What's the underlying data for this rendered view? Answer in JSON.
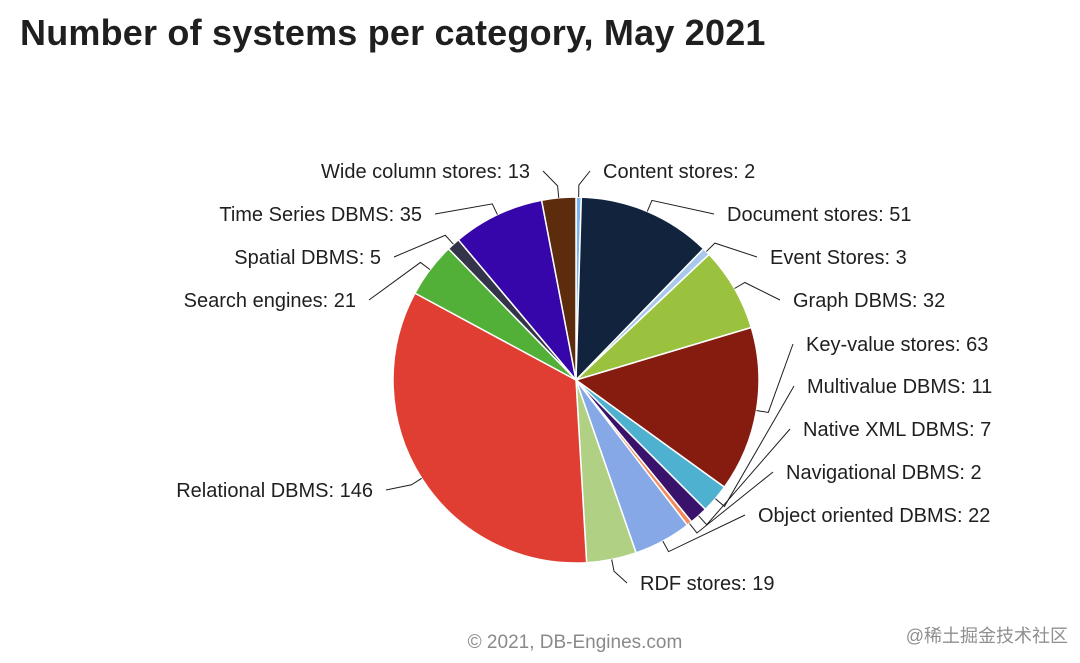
{
  "chart_data": {
    "type": "pie",
    "title": "Number of systems per category, May 2021",
    "slices": [
      {
        "label": "Content stores",
        "value": 2,
        "color": "#7cb5ec"
      },
      {
        "label": "Document stores",
        "value": 51,
        "color": "#12233d"
      },
      {
        "label": "Event Stores",
        "value": 3,
        "color": "#a8c8ec"
      },
      {
        "label": "Graph DBMS",
        "value": 32,
        "color": "#9bc23e"
      },
      {
        "label": "Key-value stores",
        "value": 63,
        "color": "#861b0f"
      },
      {
        "label": "Multivalue DBMS",
        "value": 11,
        "color": "#4eb1cf"
      },
      {
        "label": "Native XML DBMS",
        "value": 7,
        "color": "#39136b"
      },
      {
        "label": "Navigational DBMS",
        "value": 2,
        "color": "#f28a5a"
      },
      {
        "label": "Object oriented DBMS",
        "value": 22,
        "color": "#86a8e6"
      },
      {
        "label": "RDF stores",
        "value": 19,
        "color": "#b0d084"
      },
      {
        "label": "Relational DBMS",
        "value": 146,
        "color": "#e03e32"
      },
      {
        "label": "Search engines",
        "value": 21,
        "color": "#52b038"
      },
      {
        "label": "Spatial DBMS",
        "value": 5,
        "color": "#33334a"
      },
      {
        "label": "Time Series DBMS",
        "value": 35,
        "color": "#3606ab"
      },
      {
        "label": "Wide column stores",
        "value": 13,
        "color": "#5c2c0c"
      }
    ]
  },
  "footer": "© 2021, DB-Engines.com",
  "watermark": "@稀土掘金技术社区"
}
